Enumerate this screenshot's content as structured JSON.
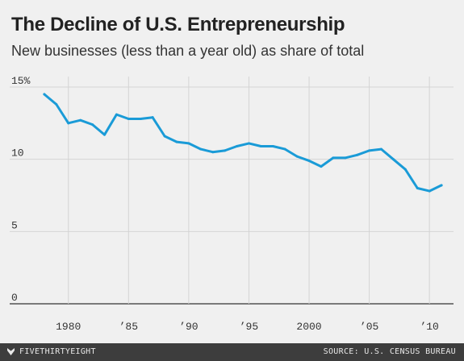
{
  "header": {
    "title": "The Decline of U.S. Entrepreneurship",
    "subtitle": "New businesses (less than a year old) as share of total"
  },
  "footer": {
    "brand": "FIVETHIRTYEIGHT",
    "brand_icon": "fivethirtyeight-logo-icon",
    "source": "SOURCE: U.S. CENSUS BUREAU"
  },
  "colors": {
    "background": "#f0f0f0",
    "line": "#1a9bd7",
    "grid": "#d4d4d4",
    "footer": "#3d3d3d"
  },
  "chart_data": {
    "type": "line",
    "title": "The Decline of U.S. Entrepreneurship",
    "subtitle": "New businesses (less than a year old) as share of total",
    "xlabel": "",
    "ylabel": "",
    "xlim": [
      1977,
      2012
    ],
    "ylim": [
      0,
      15
    ],
    "grid": true,
    "y_ticks": [
      {
        "value": 0,
        "label": "0"
      },
      {
        "value": 5,
        "label": "5"
      },
      {
        "value": 10,
        "label": "10"
      },
      {
        "value": 15,
        "label": "15%"
      }
    ],
    "x_ticks": [
      {
        "value": 1980,
        "label": "1980"
      },
      {
        "value": 1985,
        "label": "’85"
      },
      {
        "value": 1990,
        "label": "’90"
      },
      {
        "value": 1995,
        "label": "’95"
      },
      {
        "value": 2000,
        "label": "2000"
      },
      {
        "value": 2005,
        "label": "’05"
      },
      {
        "value": 2010,
        "label": "’10"
      }
    ],
    "series": [
      {
        "x": [
          1978,
          1979,
          1980,
          1981,
          1982,
          1983,
          1984,
          1985,
          1986,
          1987,
          1988,
          1989,
          1990,
          1991,
          1992,
          1993,
          1994,
          1995,
          1996,
          1997,
          1998,
          1999,
          2000,
          2001,
          2002,
          2003,
          2004,
          2005,
          2006,
          2007,
          2008,
          2009,
          2010,
          2011
        ],
        "values": [
          14.5,
          13.8,
          12.5,
          12.7,
          12.4,
          11.7,
          13.1,
          12.8,
          12.8,
          12.9,
          11.6,
          11.2,
          11.1,
          10.7,
          10.5,
          10.6,
          10.9,
          11.1,
          10.9,
          10.9,
          10.7,
          10.2,
          9.9,
          9.5,
          10.1,
          10.1,
          10.3,
          10.6,
          10.7,
          10.0,
          9.3,
          8.0,
          7.8,
          8.2
        ]
      }
    ]
  }
}
